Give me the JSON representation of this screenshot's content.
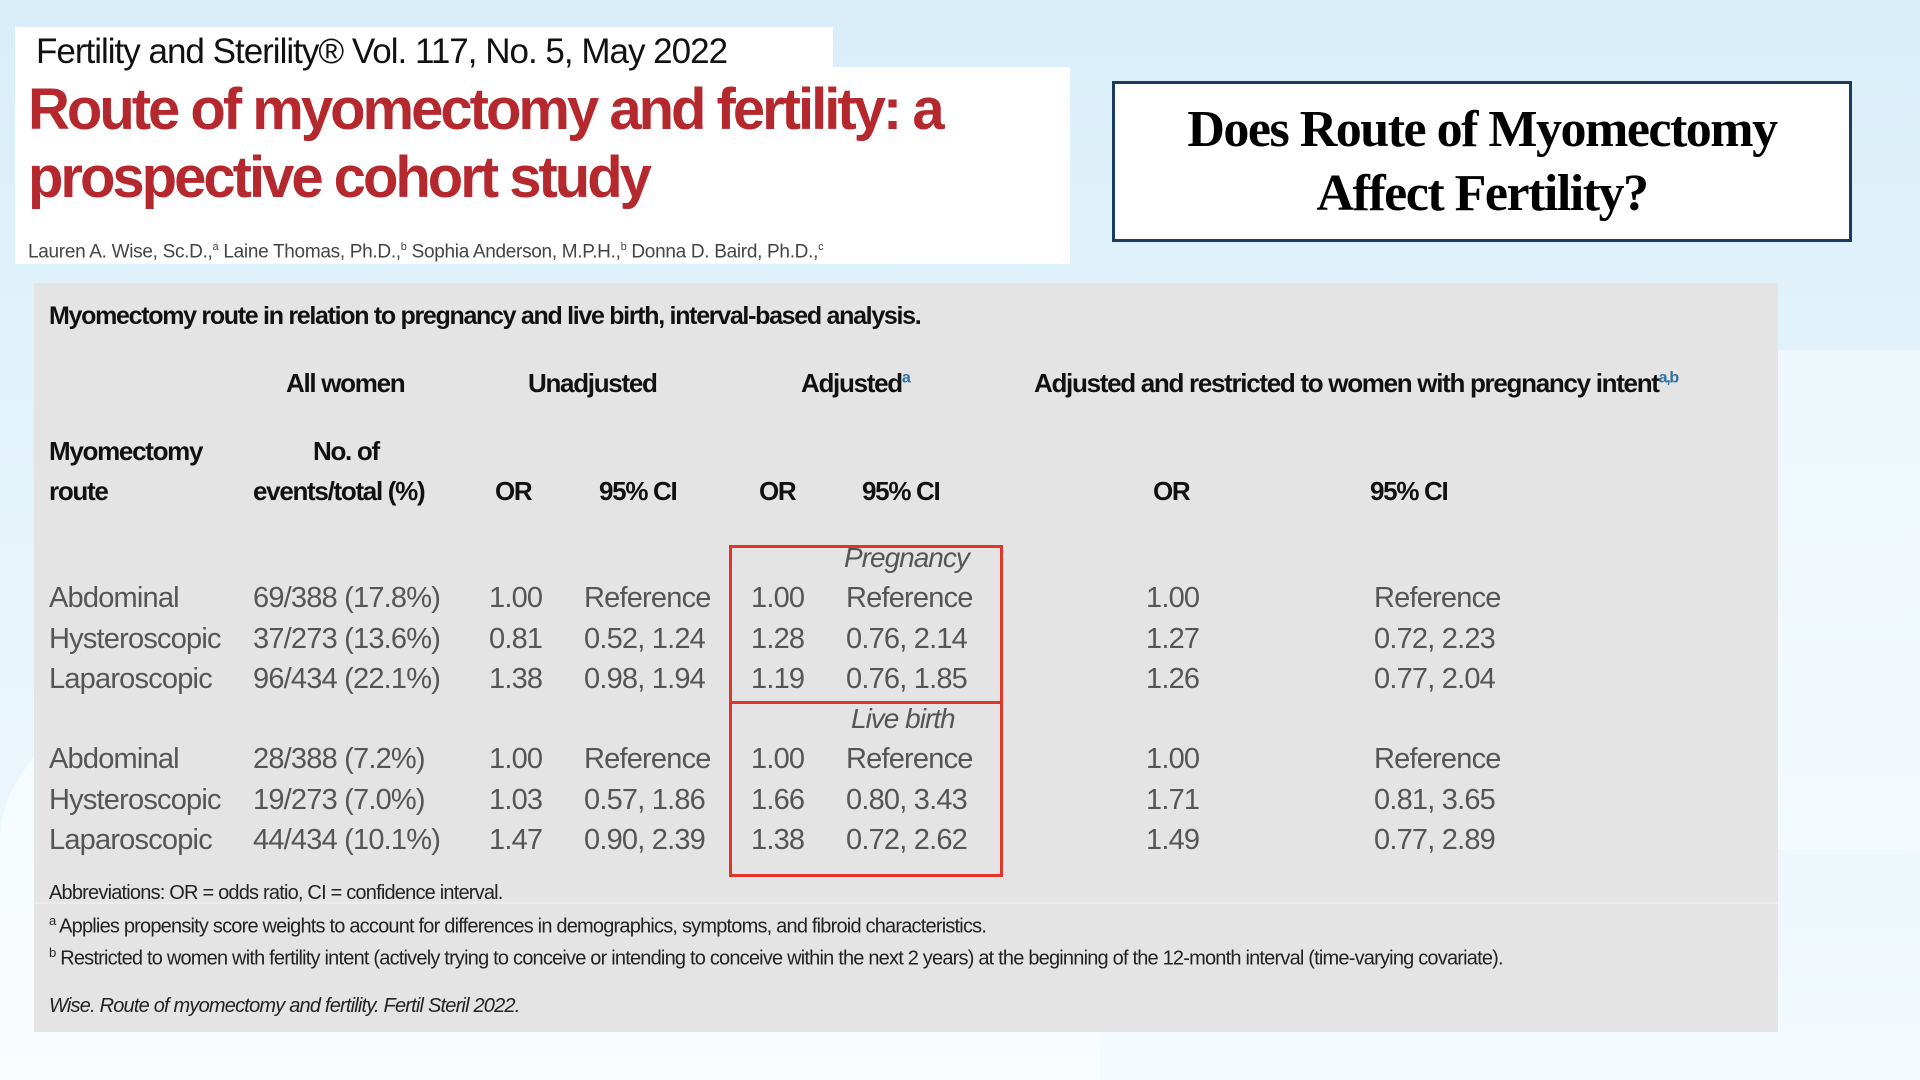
{
  "header": {
    "journal": "Fertility and Sterility® Vol. 117, No. 5, May 2022",
    "title_line1": "Route of myomectomy and fertility: a",
    "title_line2": "prospective cohort study",
    "authors": [
      {
        "name": "Lauren A. Wise, Sc.D.,",
        "sup": "a"
      },
      {
        "name": "Laine Thomas, Ph.D.,",
        "sup": "b"
      },
      {
        "name": "Sophia Anderson, M.P.H.,",
        "sup": "b"
      },
      {
        "name": "Donna D. Baird, Ph.D.,",
        "sup": "c"
      }
    ]
  },
  "question": {
    "line1": "Does Route of Myomectomy",
    "line2": "Affect Fertility?"
  },
  "table": {
    "caption": "Myomectomy route in relation to pregnancy and live birth, interval-based analysis.",
    "groups": {
      "all": "All women",
      "unadj": "Unadjusted",
      "adj": "Adjusted",
      "adj_sup": "a",
      "restr": "Adjusted and restricted to women with pregnancy intent",
      "restr_sup": "a,b"
    },
    "columns": {
      "route1": "Myomectomy",
      "route2": "route",
      "ev1": "No. of",
      "ev2": "events/total (%)",
      "or": "OR",
      "ci": "95% CI"
    },
    "sections": [
      {
        "label": "Pregnancy",
        "rows": [
          [
            "Abdominal",
            "69/388 (17.8%)",
            "1.00",
            "Reference",
            "1.00",
            "Reference",
            "1.00",
            "Reference"
          ],
          [
            "Hysteroscopic",
            "37/273 (13.6%)",
            "0.81",
            "0.52, 1.24",
            "1.28",
            "0.76, 2.14",
            "1.27",
            "0.72, 2.23"
          ],
          [
            "Laparoscopic",
            "96/434 (22.1%)",
            "1.38",
            "0.98, 1.94",
            "1.19",
            "0.76, 1.85",
            "1.26",
            "0.77, 2.04"
          ]
        ]
      },
      {
        "label": "Live birth",
        "rows": [
          [
            "Abdominal",
            "28/388 (7.2%)",
            "1.00",
            "Reference",
            "1.00",
            "Reference",
            "1.00",
            "Reference"
          ],
          [
            "Hysteroscopic",
            "19/273 (7.0%)",
            "1.03",
            "0.57, 1.86",
            "1.66",
            "0.80, 3.43",
            "1.71",
            "0.81, 3.65"
          ],
          [
            "Laparoscopic",
            "44/434 (10.1%)",
            "1.47",
            "0.90, 2.39",
            "1.38",
            "0.72, 2.62",
            "1.49",
            "0.77, 2.89"
          ]
        ]
      }
    ],
    "abbreviations": "Abbreviations: OR = odds ratio, CI = confidence interval.",
    "footnote_a": {
      "sup": "a",
      "text": "Applies propensity score weights to account for differences in demographics, symptoms, and fibroid characteristics."
    },
    "footnote_b": {
      "sup": "b",
      "text": "Restricted to women with fertility intent (actively trying to conceive or intending to conceive within the next 2 years) at the beginning of the 12-month interval (time-varying covariate)."
    },
    "citation": "Wise. Route of myomectomy and fertility. Fertil Steril 2022."
  },
  "colors": {
    "title_red": "#b5282e",
    "highlight_box": "#e0352b",
    "question_border": "#1f3a5f",
    "panel": "#e4e4e4"
  }
}
